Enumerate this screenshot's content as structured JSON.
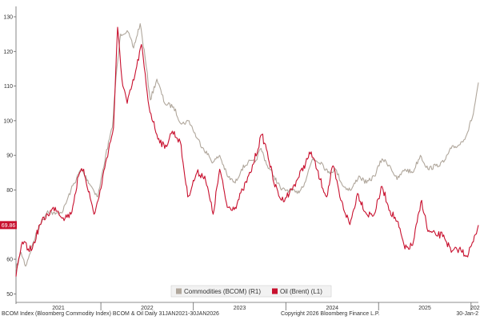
{
  "chart_data": {
    "type": "line",
    "title": "",
    "xlabel": "",
    "ylabel": "",
    "x_tick_labels": [
      "2021",
      "2022",
      "2023",
      "2024",
      "2025",
      "202"
    ],
    "x_range": [
      "2021-01-31",
      "2026-01-30"
    ],
    "y_ticks": [
      50,
      60,
      70,
      80,
      90,
      100,
      110,
      120,
      130
    ],
    "ylim": [
      48,
      133
    ],
    "grid": false,
    "legend_position": "bottom-center",
    "last_value_label": "69.86",
    "date_end_label": "30-Jan-2",
    "series": [
      {
        "name": "Commodities (BCOM) (R1)",
        "color": "#b0a79c",
        "points": [
          [
            "2021-01-31",
            57
          ],
          [
            "2021-02-20",
            62
          ],
          [
            "2021-03-10",
            58
          ],
          [
            "2021-04-05",
            64
          ],
          [
            "2021-05-05",
            70
          ],
          [
            "2021-06-05",
            74
          ],
          [
            "2021-07-05",
            73
          ],
          [
            "2021-08-05",
            74
          ],
          [
            "2021-09-05",
            80
          ],
          [
            "2021-10-15",
            86
          ],
          [
            "2021-11-25",
            81
          ],
          [
            "2021-12-20",
            78
          ],
          [
            "2022-01-20",
            90
          ],
          [
            "2022-02-15",
            98
          ],
          [
            "2022-03-01",
            112
          ],
          [
            "2022-03-20",
            125
          ],
          [
            "2022-04-15",
            126
          ],
          [
            "2022-05-10",
            121
          ],
          [
            "2022-06-05",
            128
          ],
          [
            "2022-06-25",
            118
          ],
          [
            "2022-07-15",
            106
          ],
          [
            "2022-08-10",
            112
          ],
          [
            "2022-09-10",
            105
          ],
          [
            "2022-10-15",
            104
          ],
          [
            "2022-11-15",
            99
          ],
          [
            "2022-12-15",
            100
          ],
          [
            "2023-01-15",
            95
          ],
          [
            "2023-02-10",
            92
          ],
          [
            "2023-03-20",
            88
          ],
          [
            "2023-04-15",
            90
          ],
          [
            "2023-05-15",
            84
          ],
          [
            "2023-06-15",
            82
          ],
          [
            "2023-07-10",
            86
          ],
          [
            "2023-08-05",
            88
          ],
          [
            "2023-09-01",
            88
          ],
          [
            "2023-09-25",
            92
          ],
          [
            "2023-10-20",
            87
          ],
          [
            "2023-11-15",
            84
          ],
          [
            "2023-12-15",
            80
          ],
          [
            "2024-01-15",
            80
          ],
          [
            "2024-02-15",
            79
          ],
          [
            "2024-03-15",
            82
          ],
          [
            "2024-04-15",
            89
          ],
          [
            "2024-05-20",
            88
          ],
          [
            "2024-06-15",
            85
          ],
          [
            "2024-07-15",
            86
          ],
          [
            "2024-08-15",
            81
          ],
          [
            "2024-09-15",
            80
          ],
          [
            "2024-10-15",
            84
          ],
          [
            "2024-11-15",
            82
          ],
          [
            "2024-12-15",
            84
          ],
          [
            "2025-01-15",
            89
          ],
          [
            "2025-02-15",
            87
          ],
          [
            "2025-03-15",
            83
          ],
          [
            "2025-04-15",
            86
          ],
          [
            "2025-05-15",
            85
          ],
          [
            "2025-06-15",
            90
          ],
          [
            "2025-07-15",
            86
          ],
          [
            "2025-08-15",
            87
          ],
          [
            "2025-09-15",
            88
          ],
          [
            "2025-10-15",
            92
          ],
          [
            "2025-11-15",
            93
          ],
          [
            "2025-12-15",
            96
          ],
          [
            "2026-01-10",
            102
          ],
          [
            "2026-01-30",
            111
          ]
        ]
      },
      {
        "name": "Oil (Brent) (L1)",
        "color": "#c8102e",
        "points": [
          [
            "2021-01-31",
            55
          ],
          [
            "2021-02-25",
            65
          ],
          [
            "2021-03-20",
            63
          ],
          [
            "2021-04-05",
            63
          ],
          [
            "2021-05-05",
            70
          ],
          [
            "2021-06-05",
            73
          ],
          [
            "2021-07-05",
            75
          ],
          [
            "2021-08-05",
            72
          ],
          [
            "2021-09-05",
            73
          ],
          [
            "2021-10-05",
            84
          ],
          [
            "2021-10-25",
            86
          ],
          [
            "2021-12-05",
            73
          ],
          [
            "2021-12-25",
            78
          ],
          [
            "2022-01-20",
            88
          ],
          [
            "2022-02-20",
            98
          ],
          [
            "2022-03-08",
            127
          ],
          [
            "2022-03-25",
            112
          ],
          [
            "2022-04-15",
            105
          ],
          [
            "2022-05-15",
            113
          ],
          [
            "2022-06-10",
            122
          ],
          [
            "2022-07-10",
            104
          ],
          [
            "2022-08-10",
            96
          ],
          [
            "2022-09-10",
            92
          ],
          [
            "2022-10-10",
            97
          ],
          [
            "2022-11-10",
            94
          ],
          [
            "2022-12-10",
            78
          ],
          [
            "2023-01-15",
            85
          ],
          [
            "2023-02-15",
            84
          ],
          [
            "2023-03-20",
            73
          ],
          [
            "2023-04-15",
            86
          ],
          [
            "2023-05-15",
            75
          ],
          [
            "2023-06-15",
            75
          ],
          [
            "2023-07-15",
            80
          ],
          [
            "2023-08-15",
            85
          ],
          [
            "2023-09-28",
            96
          ],
          [
            "2023-10-20",
            91
          ],
          [
            "2023-11-15",
            82
          ],
          [
            "2023-12-15",
            77
          ],
          [
            "2024-01-15",
            79
          ],
          [
            "2024-02-15",
            83
          ],
          [
            "2024-04-10",
            91
          ],
          [
            "2024-05-15",
            83
          ],
          [
            "2024-06-10",
            78
          ],
          [
            "2024-07-05",
            87
          ],
          [
            "2024-08-05",
            77
          ],
          [
            "2024-09-10",
            70
          ],
          [
            "2024-10-10",
            79
          ],
          [
            "2024-11-15",
            73
          ],
          [
            "2024-12-15",
            73
          ],
          [
            "2025-01-15",
            81
          ],
          [
            "2025-02-15",
            74
          ],
          [
            "2025-03-15",
            71
          ],
          [
            "2025-04-15",
            63
          ],
          [
            "2025-05-15",
            64
          ],
          [
            "2025-06-20",
            77
          ],
          [
            "2025-07-15",
            68
          ],
          [
            "2025-08-15",
            67
          ],
          [
            "2025-09-15",
            67
          ],
          [
            "2025-10-15",
            62
          ],
          [
            "2025-11-15",
            63
          ],
          [
            "2025-12-15",
            61
          ],
          [
            "2026-01-10",
            65
          ],
          [
            "2026-01-30",
            69.86
          ]
        ]
      }
    ]
  },
  "footer": {
    "left": "BCOM Index (Bloomberg Commodity Index) BCOM & Oil Daily 31JAN2021-30JAN2026",
    "middle": "Copyright 2026 Bloomberg Finance L.P.",
    "right": "30-Jan-2"
  }
}
